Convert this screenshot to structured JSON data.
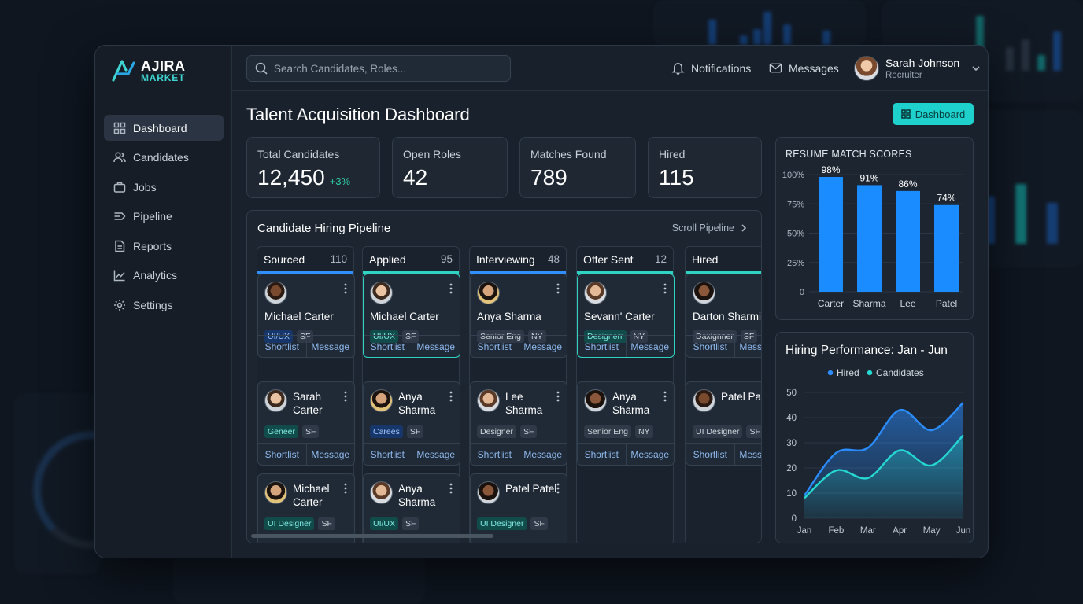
{
  "brand": {
    "line1": "AJIRA",
    "line2": "MARKET"
  },
  "nav": [
    {
      "label": "Dashboard",
      "icon": "grid-icon",
      "active": true
    },
    {
      "label": "Candidates",
      "icon": "users-icon"
    },
    {
      "label": "Jobs",
      "icon": "briefcase-icon"
    },
    {
      "label": "Pipeline",
      "icon": "pipeline-icon"
    },
    {
      "label": "Reports",
      "icon": "document-icon"
    },
    {
      "label": "Analytics",
      "icon": "trend-icon"
    },
    {
      "label": "Settings",
      "icon": "gear-icon"
    }
  ],
  "search": {
    "placeholder": "Search Candidates, Roles..."
  },
  "topbar": {
    "notifications": "Notifications",
    "messages": "Messages",
    "user_name": "Sarah Johnson",
    "user_role": "Recruiter"
  },
  "page": {
    "title": "Talent Acquisition Dashboard",
    "dashboard_button": "Dashboard"
  },
  "stats": [
    {
      "label": "Total Candidates",
      "value": "12,450",
      "delta": "+3%"
    },
    {
      "label": "Open Roles",
      "value": "42"
    },
    {
      "label": "Matches Found",
      "value": "789"
    },
    {
      "label": "Hired",
      "value": "115"
    }
  ],
  "pipeline": {
    "title": "Candidate Hiring Pipeline",
    "scroll_label": "Scroll Pipeline",
    "actions": {
      "shortlist": "Shortlist",
      "message": "Message"
    },
    "columns": [
      {
        "name": "Sourced",
        "count": "110",
        "accent": "#2f8fff",
        "cards": [
          {
            "name": "Michael Carter",
            "tags": [
              "UI/UX",
              "SF"
            ],
            "tagStyle": "blue",
            "layout": "one"
          },
          {
            "name": "Sarah Carter",
            "tags": [
              "Geneer",
              "SF"
            ],
            "tagStyle": "teal",
            "layout": "two"
          },
          {
            "name": "Michael Carter",
            "tags": [
              "UI Designer",
              "SF"
            ],
            "tagStyle": "teal",
            "layout": "two"
          }
        ]
      },
      {
        "name": "Applied",
        "count": "95",
        "accent": "#2fd3c4",
        "cards": [
          {
            "name": "Michael Carter",
            "tags": [
              "UI/UX",
              "SF"
            ],
            "tagStyle": "teal",
            "layout": "one",
            "highlight": true
          },
          {
            "name": "Anya Sharma",
            "tags": [
              "Carees",
              "SF"
            ],
            "tagStyle": "blue",
            "layout": "two"
          },
          {
            "name": "Anya Sharma",
            "tags": [
              "UI/UX",
              "SF"
            ],
            "tagStyle": "teal",
            "layout": "two"
          }
        ]
      },
      {
        "name": "Interviewing",
        "count": "48",
        "accent": "#2f8fff",
        "cards": [
          {
            "name": "Anya Sharma",
            "tags": [
              "Senior Eng",
              "NY"
            ],
            "tagStyle": "gray",
            "layout": "one"
          },
          {
            "name": "Lee Sharma",
            "tags": [
              "Designer",
              "SF"
            ],
            "tagStyle": "gray",
            "layout": "two"
          },
          {
            "name": "Patel Patel",
            "tags": [
              "UI Designer",
              "SF"
            ],
            "tagStyle": "teal",
            "layout": "two"
          }
        ]
      },
      {
        "name": "Offer Sent",
        "count": "12",
        "accent": "#2fd3c4",
        "cards": [
          {
            "name": "Sevann' Carter",
            "tags": [
              "Designerr",
              "NY"
            ],
            "tagStyle": "teal",
            "layout": "one",
            "highlight": true
          },
          {
            "name": "Anya Sharma",
            "tags": [
              "Senior Eng",
              "NY"
            ],
            "tagStyle": "gray",
            "layout": "two"
          }
        ]
      },
      {
        "name": "Hired",
        "count": "",
        "accent": "#2fd3c4",
        "cards": [
          {
            "name": "Darton Sharmi",
            "tags": [
              "Daxignner",
              "SF"
            ],
            "tagStyle": "gray",
            "layout": "one"
          },
          {
            "name": "Patel Patel",
            "tags": [
              "UI Designer",
              "SF"
            ],
            "tagStyle": "gray",
            "layout": "two"
          }
        ]
      }
    ]
  },
  "chart_data": [
    {
      "type": "bar",
      "title": "RESUME MATCH SCORES",
      "categories": [
        "Carter",
        "Sharma",
        "Lee",
        "Patel"
      ],
      "values": [
        98,
        91,
        86,
        74
      ],
      "data_labels": [
        "98%",
        "91%",
        "86%",
        "74%"
      ],
      "ylim": [
        0,
        100
      ],
      "yticks": [
        0,
        25,
        50,
        75,
        100
      ],
      "ytick_labels": [
        "0",
        "25%",
        "50%",
        "75%",
        "100%"
      ],
      "color": "#1a8cff",
      "grid": true
    },
    {
      "type": "area",
      "title": "Hiring Performance: Jan - Jun",
      "x": [
        "Jan",
        "Feb",
        "Mar",
        "Apr",
        "May",
        "Jun"
      ],
      "ylim": [
        0,
        50
      ],
      "yticks": [
        0,
        10,
        20,
        30,
        40,
        50
      ],
      "legend": "top-center",
      "series": [
        {
          "name": "Hired",
          "color": "#2a8cff",
          "values": [
            9,
            26,
            28,
            43,
            35,
            46
          ]
        },
        {
          "name": "Candidates",
          "color": "#25d9d2",
          "values": [
            8,
            19,
            16,
            27,
            21,
            33
          ]
        }
      ],
      "grid": true
    }
  ]
}
